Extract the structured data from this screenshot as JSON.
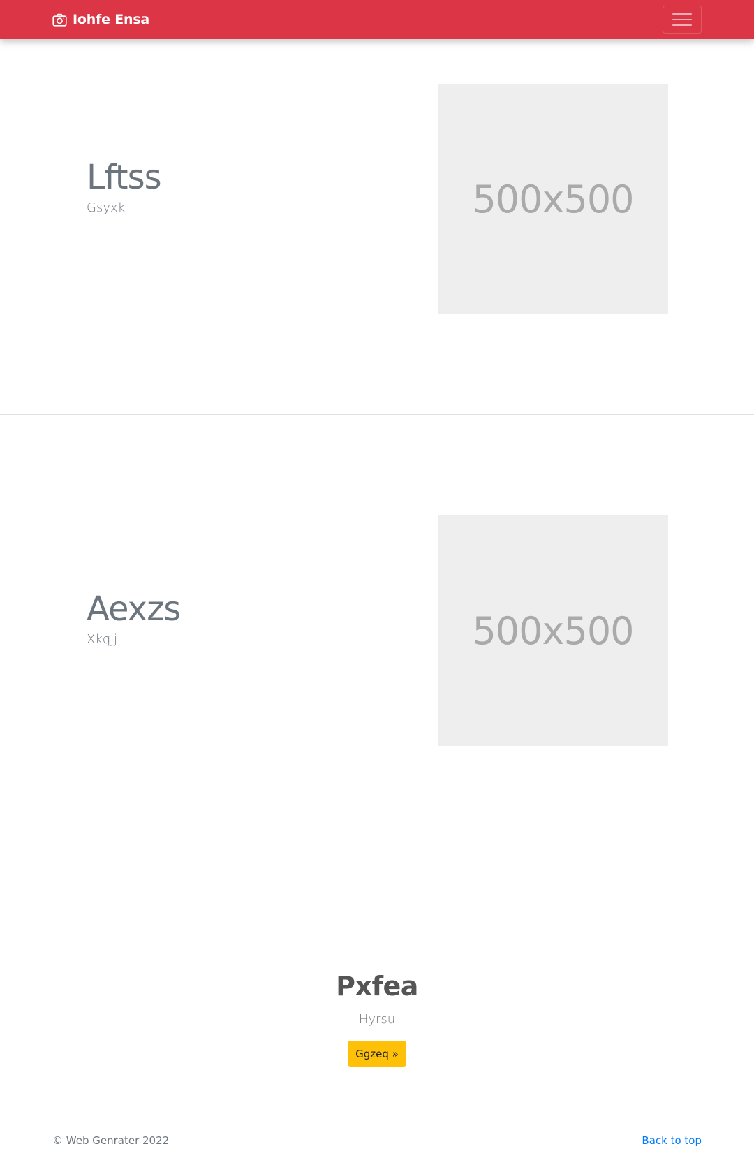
{
  "navbar": {
    "brand_icon": "camera-icon",
    "brand_text": "Iohfe Ensa",
    "toggler_icon": "hamburger-menu-icon",
    "background_color": "#dc3545"
  },
  "features": [
    {
      "heading": "Lftss",
      "subtitle": "Gsyxk",
      "image_label": "500x500"
    },
    {
      "heading": "Aexzs",
      "subtitle": "Xkqjj",
      "image_label": "500x500"
    }
  ],
  "cta": {
    "title": "Pxfea",
    "subtitle": "Hyrsu",
    "button_label": "Ggzeq »",
    "button_color": "#ffc107"
  },
  "footer": {
    "copyright": "© Web Genrater 2022",
    "back_to_top": "Back to top",
    "link_color": "#007bff"
  }
}
